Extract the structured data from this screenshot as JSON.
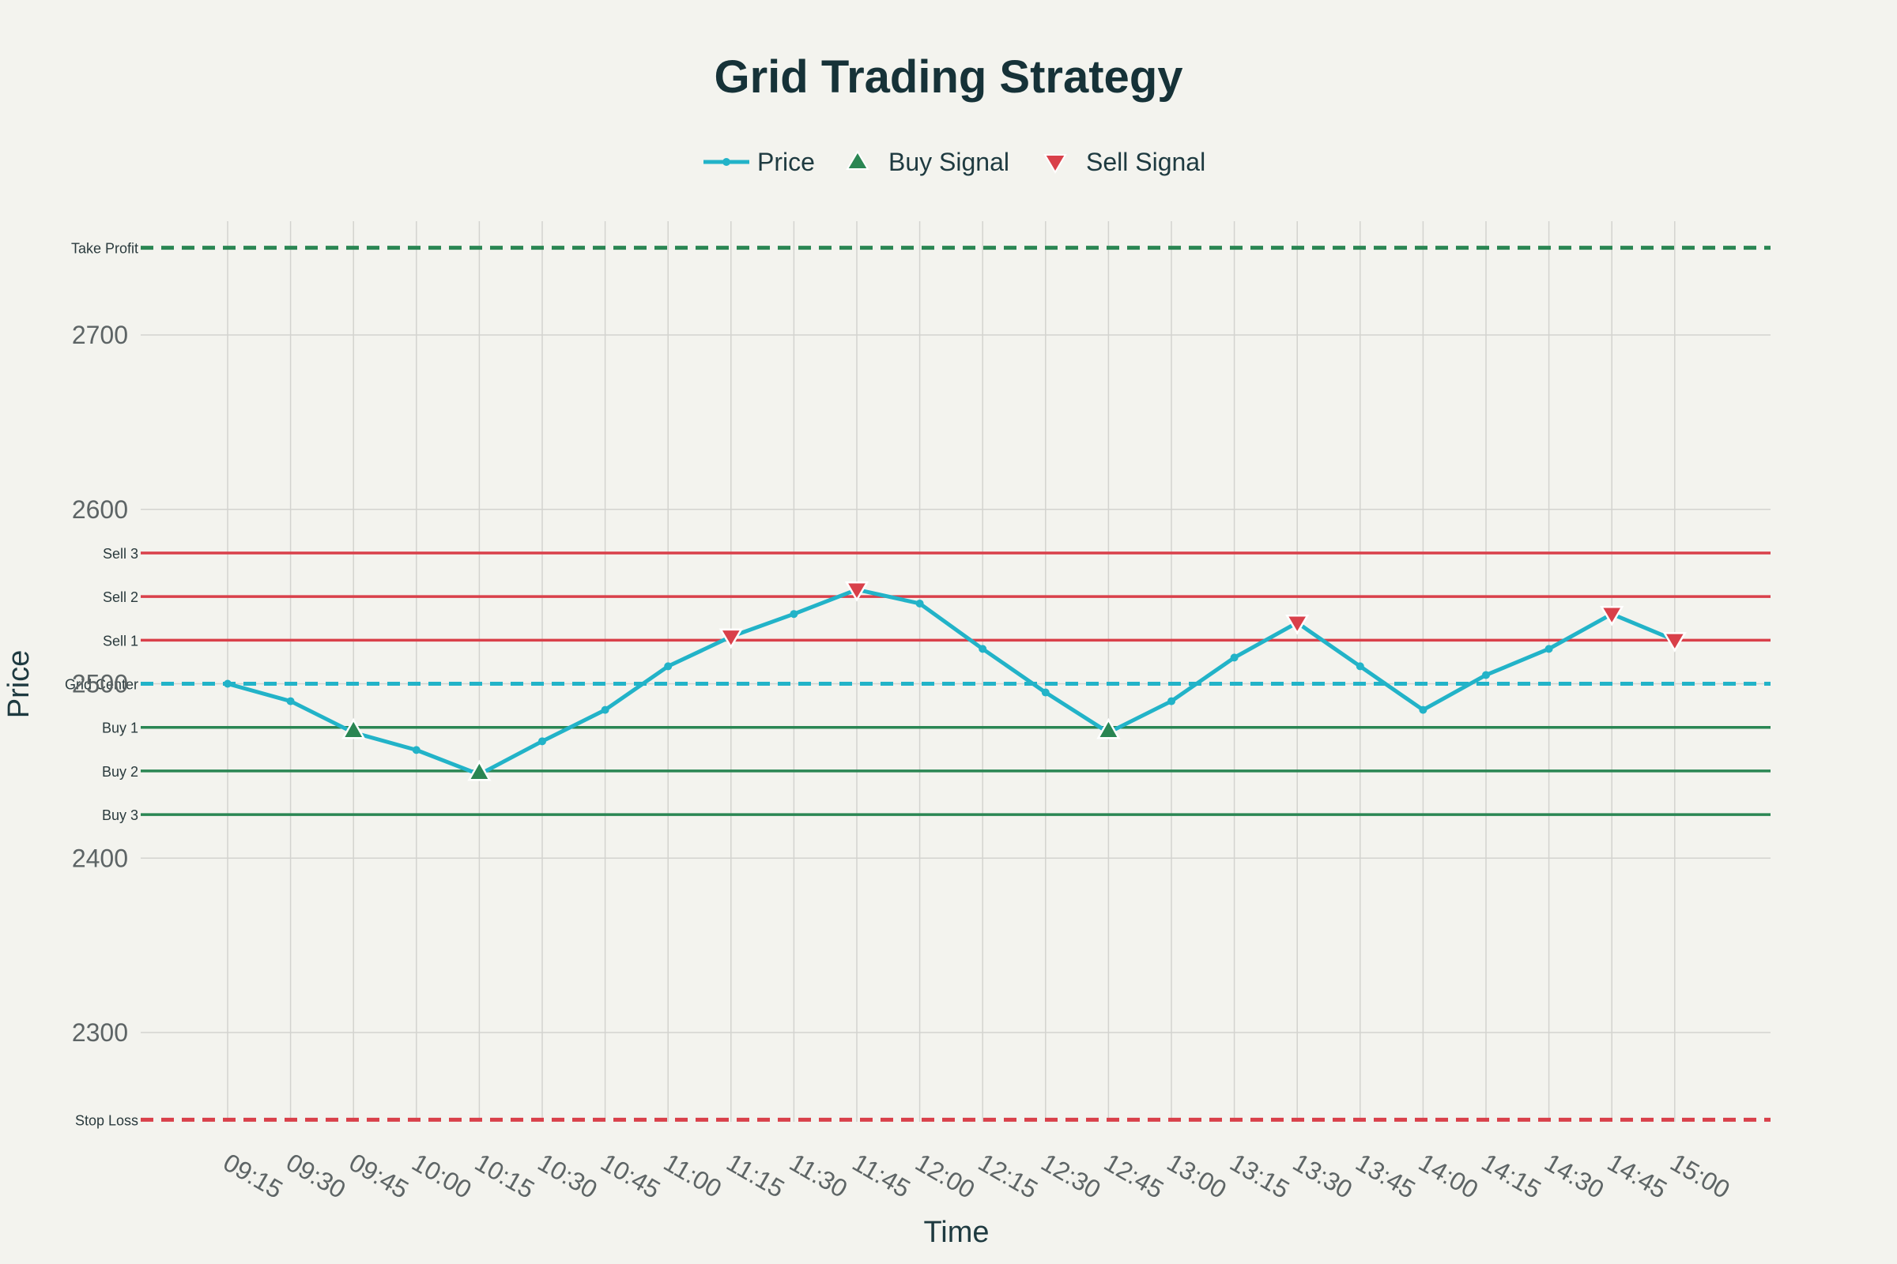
{
  "chart_data": {
    "type": "line",
    "title": "Grid Trading Strategy",
    "xlabel": "Time",
    "ylabel": "Price",
    "ylim": [
      2250,
      2775
    ],
    "yticks": [
      2300,
      2400,
      2500,
      2600,
      2700
    ],
    "grid": true,
    "legend_position": "top-center",
    "categories": [
      "09:15",
      "09:30",
      "09:45",
      "10:00",
      "10:15",
      "10:30",
      "10:45",
      "11:00",
      "11:15",
      "11:30",
      "11:45",
      "12:00",
      "12:15",
      "12:30",
      "12:45",
      "13:00",
      "13:15",
      "13:30",
      "13:45",
      "14:00",
      "14:15",
      "14:30",
      "14:45",
      "15:00"
    ],
    "series": [
      {
        "name": "Price",
        "color": "#22b3c8",
        "values": [
          2500,
          2490,
          2472,
          2462,
          2448,
          2467,
          2485,
          2510,
          2527,
          2540,
          2554,
          2546,
          2520,
          2495,
          2472,
          2490,
          2515,
          2535,
          2510,
          2485,
          2505,
          2520,
          2540,
          2525
        ]
      },
      {
        "name": "Buy Signal",
        "color": "#2a8653",
        "marker": "triangle-up",
        "points": [
          {
            "x": "09:45",
            "y": 2472
          },
          {
            "x": "10:15",
            "y": 2448
          },
          {
            "x": "12:45",
            "y": 2472
          }
        ]
      },
      {
        "name": "Sell Signal",
        "color": "#d9404a",
        "marker": "triangle-down",
        "points": [
          {
            "x": "11:15",
            "y": 2527
          },
          {
            "x": "11:45",
            "y": 2554
          },
          {
            "x": "13:30",
            "y": 2535
          },
          {
            "x": "14:45",
            "y": 2540
          },
          {
            "x": "15:00",
            "y": 2525
          }
        ]
      }
    ],
    "levels": [
      {
        "label": "Take Profit",
        "value": 2750,
        "color": "#2a8653",
        "dashed": true
      },
      {
        "label": "Sell 3",
        "value": 2575,
        "color": "#d9404a",
        "dashed": false
      },
      {
        "label": "Sell 2",
        "value": 2550,
        "color": "#d9404a",
        "dashed": false
      },
      {
        "label": "Sell 1",
        "value": 2525,
        "color": "#d9404a",
        "dashed": false
      },
      {
        "label": "Grid Center",
        "value": 2500,
        "color": "#22b3c8",
        "dashed": true
      },
      {
        "label": "Buy 1",
        "value": 2475,
        "color": "#2a8653",
        "dashed": false
      },
      {
        "label": "Buy 2",
        "value": 2450,
        "color": "#2a8653",
        "dashed": false
      },
      {
        "label": "Buy 3",
        "value": 2425,
        "color": "#2a8653",
        "dashed": false
      },
      {
        "label": "Stop Loss",
        "value": 2250,
        "color": "#d9404a",
        "dashed": true
      }
    ]
  }
}
